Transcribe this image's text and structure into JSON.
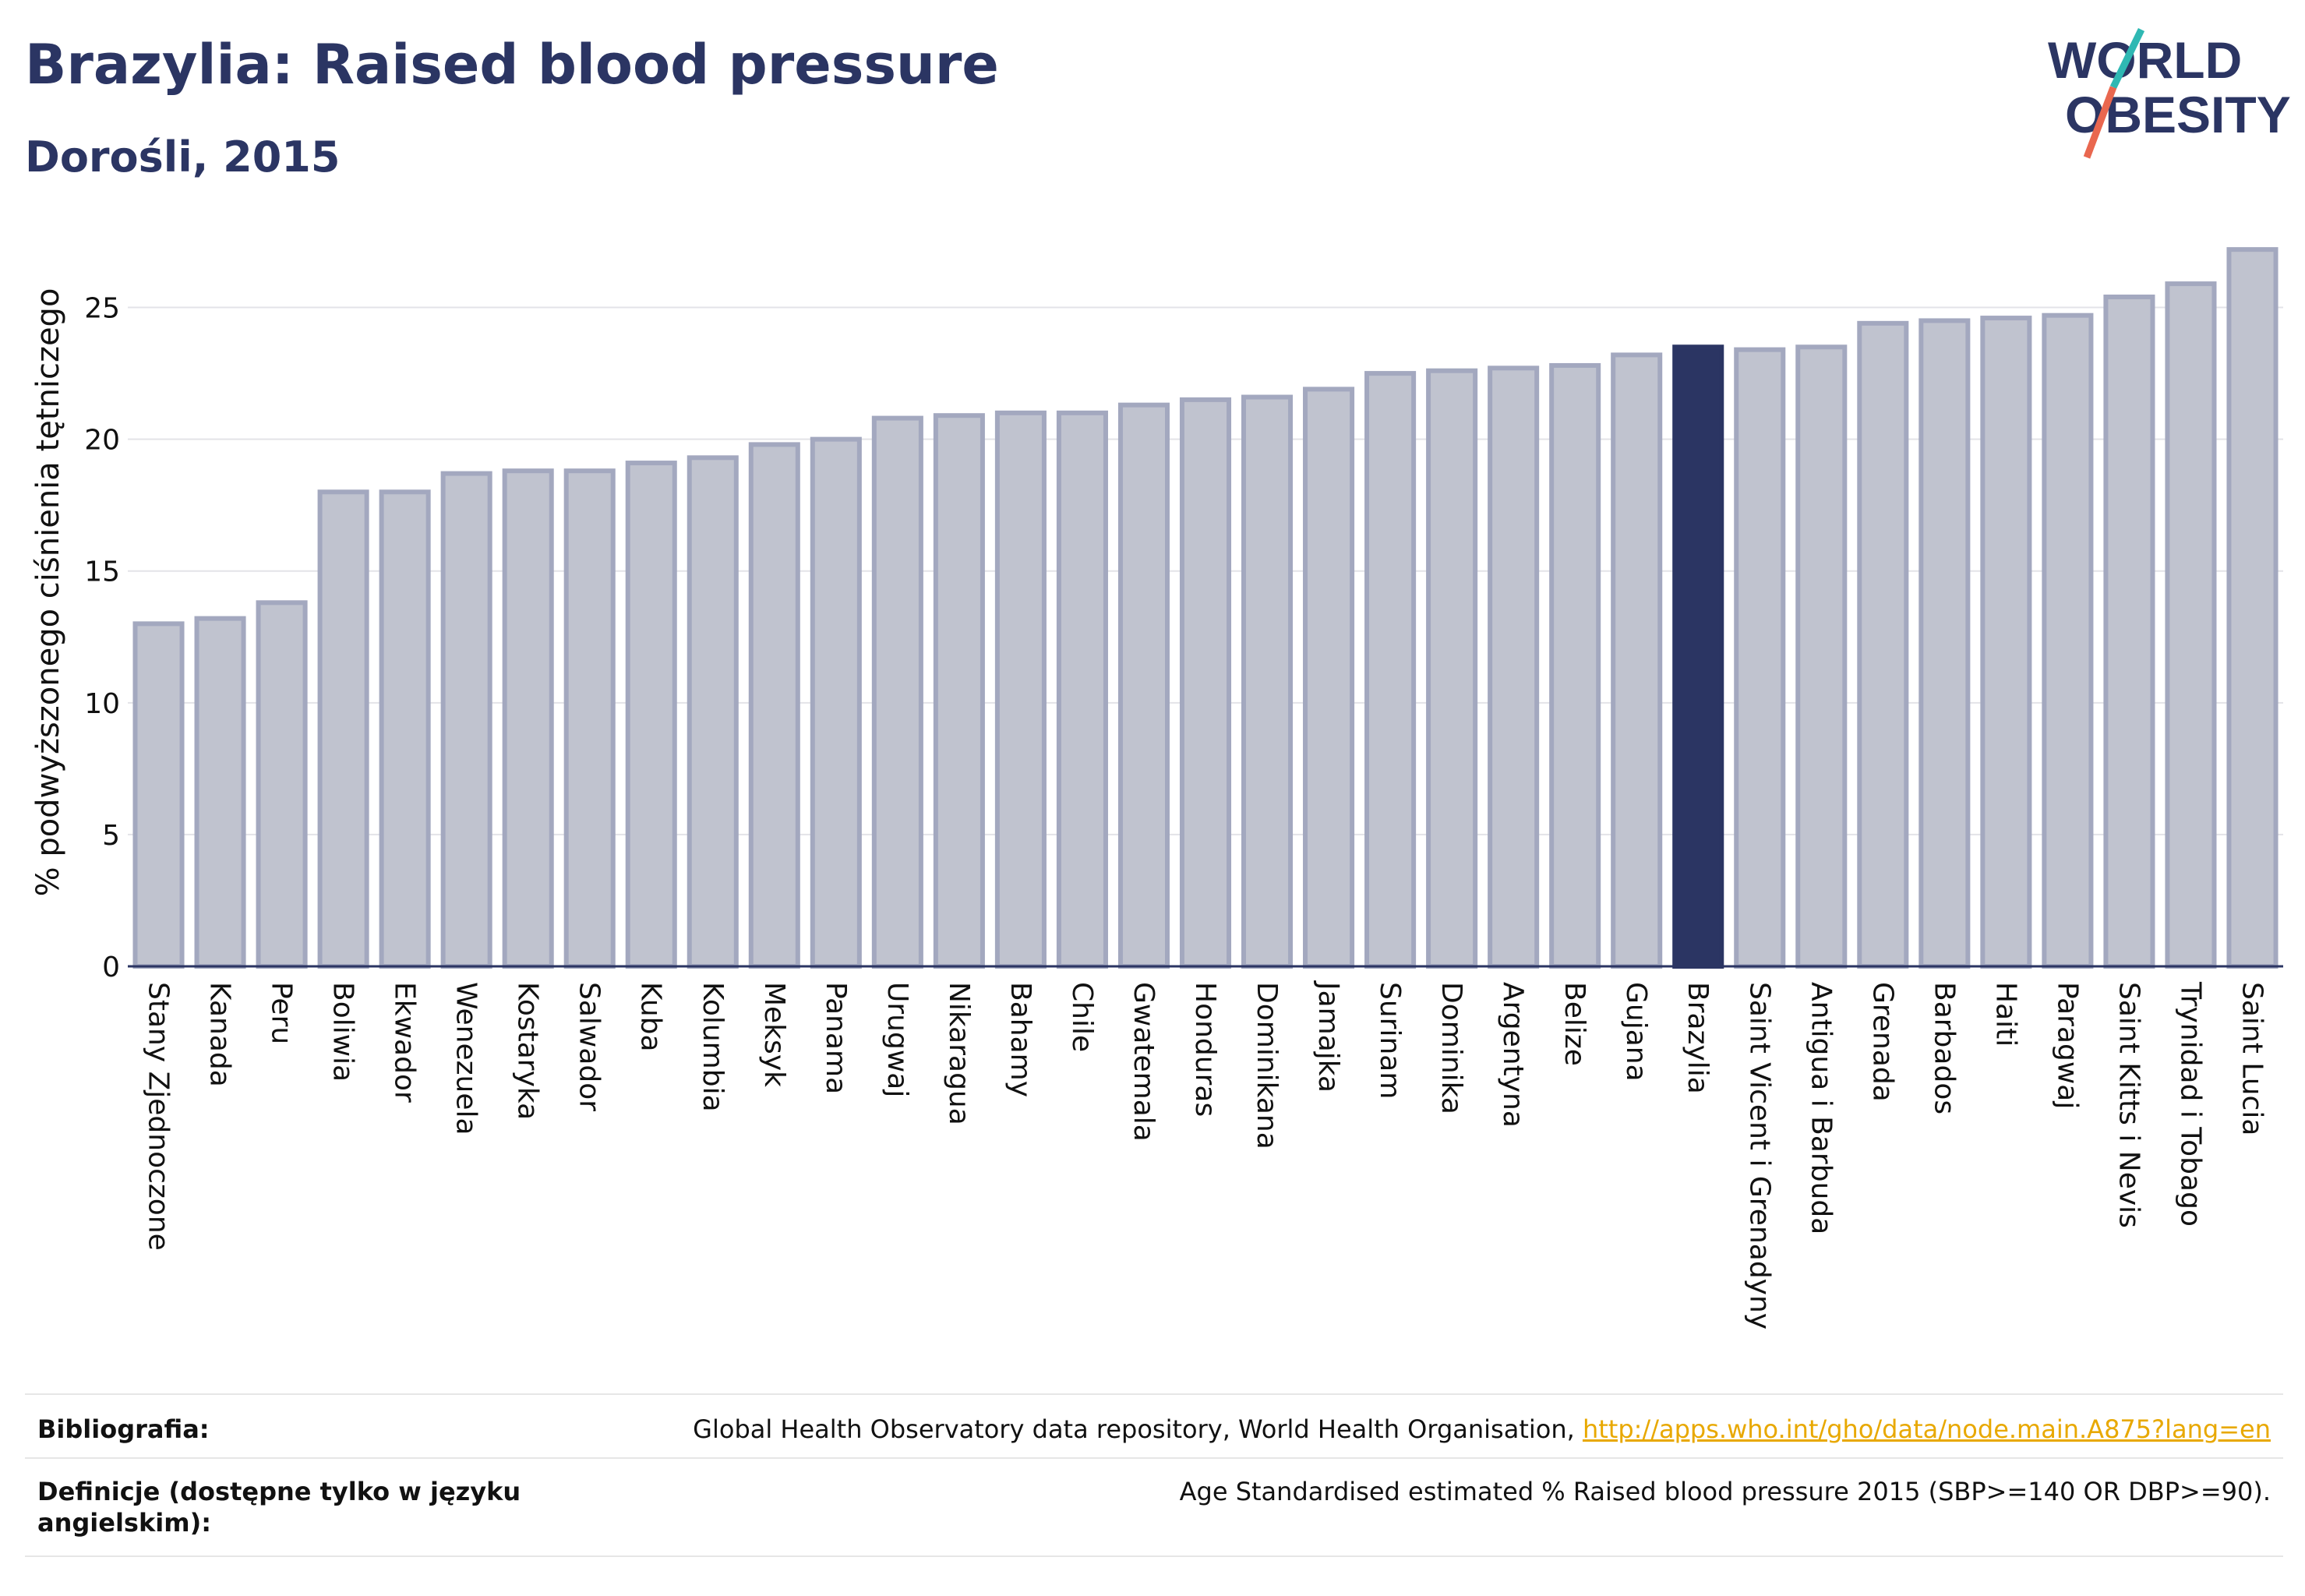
{
  "header": {
    "title": "Brazylia: Raised blood pressure",
    "subtitle": "Dorośli, 2015",
    "logo_line1": "WORLD",
    "logo_line2": "OBESITY"
  },
  "chart_data": {
    "type": "bar",
    "ylabel": "% podwyższonego ciśnienia tętniczego",
    "xlabel": "",
    "ylim": [
      0,
      27.5
    ],
    "yticks": [
      0,
      5,
      10,
      15,
      20,
      25
    ],
    "grid": true,
    "highlight": "Brazylia",
    "categories": [
      "Stany Zjednoczone",
      "Kanada",
      "Peru",
      "Boliwia",
      "Ekwador",
      "Wenezuela",
      "Kostaryka",
      "Salwador",
      "Kuba",
      "Kolumbia",
      "Meksyk",
      "Panama",
      "Urugwaj",
      "Nikaragua",
      "Bahamy",
      "Chile",
      "Gwatemala",
      "Honduras",
      "Dominikana",
      "Jamajka",
      "Surinam",
      "Dominika",
      "Argentyna",
      "Belize",
      "Gujana",
      "Brazylia",
      "Saint Vicent i Grenadyny",
      "Antigua i Barbuda",
      "Grenada",
      "Barbados",
      "Haiti",
      "Paragwaj",
      "Saint Kitts i Nevis",
      "Trynidad i Tobago",
      "Saint Lucia"
    ],
    "values": [
      13.0,
      13.2,
      13.8,
      18.0,
      18.0,
      18.7,
      18.8,
      18.8,
      19.1,
      19.3,
      19.8,
      20.0,
      20.8,
      20.9,
      21.0,
      21.0,
      21.3,
      21.5,
      21.6,
      21.9,
      22.5,
      22.6,
      22.7,
      22.8,
      23.2,
      23.5,
      23.4,
      23.5,
      24.4,
      24.5,
      24.6,
      24.7,
      25.4,
      25.9,
      27.2
    ],
    "colors": {
      "bar": "#c0c3cf",
      "bar_border": "#a3a8bf",
      "highlight": "#2b3563",
      "grid": "#e3e3e8",
      "axis": "#2b3563"
    }
  },
  "footer": {
    "bibliography_label": "Bibliografia:",
    "bibliography_text": "Global Health Observatory data repository, World Health Organisation, ",
    "bibliography_link": "http://apps.who.int/gho/data/node.main.A875?lang=en",
    "definitions_label": "Definicje (dostępne tylko w języku angielskim):",
    "definitions_text": "Age Standardised estimated % Raised blood pressure 2015 (SBP>=140 OR DBP>=90)."
  }
}
